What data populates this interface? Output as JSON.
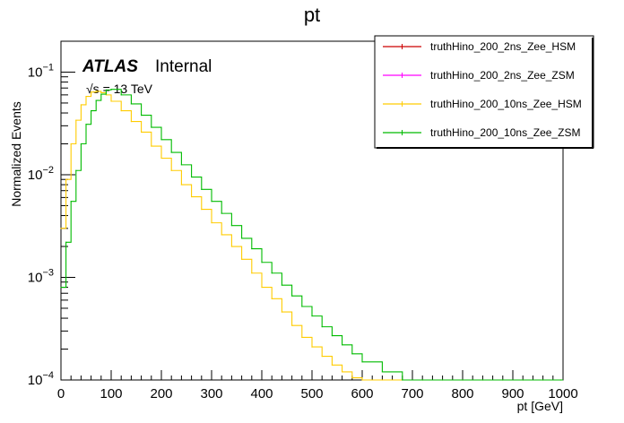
{
  "chart_data": {
    "type": "line",
    "title": "pt",
    "xlabel": "pt [GeV]",
    "ylabel": "Normalized Events",
    "xlim": [
      0,
      1000
    ],
    "ylim": [
      0.0001,
      0.2
    ],
    "yscale": "log",
    "bin_width": 5,
    "x_ticks": [
      0,
      100,
      200,
      300,
      400,
      500,
      600,
      700,
      800,
      900,
      1000
    ],
    "x_tick_labels": [
      "0",
      "100",
      "200",
      "300",
      "400",
      "500",
      "600",
      "700",
      "800",
      "900",
      "1000"
    ],
    "y_tick_labels": [
      {
        "value": 0.1,
        "base": "10",
        "exp": "−1"
      },
      {
        "value": 0.01,
        "base": "10",
        "exp": "−2"
      },
      {
        "value": 0.001,
        "base": "10",
        "exp": "−3"
      },
      {
        "value": 0.0001,
        "base": "10",
        "exp": "−4"
      }
    ],
    "atlas_label": "ATLAS",
    "atlas_status": "Internal",
    "energy_label": "√s = 13 TeV",
    "legend_position": "top-right",
    "series": [
      {
        "name": "truthHino_200_2ns_Zee_HSM",
        "color": "#cc0000",
        "x": [],
        "values": []
      },
      {
        "name": "truthHino_200_2ns_Zee_ZSM",
        "color": "#ff00ff",
        "x": [],
        "values": []
      },
      {
        "name": "truthHino_200_10ns_Zee_HSM",
        "color": "#ffcc00",
        "x": [
          0,
          10,
          20,
          30,
          40,
          50,
          60,
          70,
          80,
          90,
          100,
          120,
          140,
          160,
          180,
          200,
          220,
          240,
          260,
          280,
          300,
          320,
          340,
          360,
          380,
          400,
          420,
          440,
          460,
          480,
          500,
          520,
          540,
          560,
          580,
          600,
          640,
          680,
          720,
          760,
          800,
          840,
          880,
          920,
          960,
          995
        ],
        "values": [
          0.003,
          0.009,
          0.02,
          0.034,
          0.048,
          0.058,
          0.064,
          0.065,
          0.063,
          0.06,
          0.052,
          0.042,
          0.033,
          0.026,
          0.019,
          0.0145,
          0.011,
          0.008,
          0.0061,
          0.0046,
          0.0034,
          0.0026,
          0.002,
          0.0015,
          0.0011,
          0.0008,
          0.00062,
          0.00046,
          0.00034,
          0.00026,
          0.00021,
          0.00017,
          0.00014,
          0.00012,
          0.000105,
          0.0001,
          9.5e-05,
          9e-05,
          9e-05,
          9e-05,
          9e-05,
          9e-05,
          9e-05,
          9e-05,
          9e-05,
          9e-05
        ]
      },
      {
        "name": "truthHino_200_10ns_Zee_ZSM",
        "color": "#00bb00",
        "x": [
          0,
          10,
          20,
          30,
          40,
          50,
          60,
          70,
          80,
          90,
          100,
          120,
          140,
          160,
          180,
          200,
          220,
          240,
          260,
          280,
          300,
          320,
          340,
          360,
          380,
          400,
          420,
          440,
          460,
          480,
          500,
          520,
          540,
          560,
          580,
          600,
          640,
          680,
          720,
          760,
          800,
          840,
          880,
          920,
          960,
          995
        ],
        "values": [
          0.0008,
          0.0022,
          0.0055,
          0.011,
          0.02,
          0.031,
          0.042,
          0.053,
          0.061,
          0.067,
          0.068,
          0.06,
          0.049,
          0.038,
          0.029,
          0.022,
          0.0165,
          0.0125,
          0.0095,
          0.0072,
          0.0055,
          0.0042,
          0.0032,
          0.0024,
          0.0019,
          0.0014,
          0.0011,
          0.00084,
          0.00066,
          0.00052,
          0.00042,
          0.00033,
          0.00027,
          0.00022,
          0.00018,
          0.00015,
          0.00012,
          0.0001,
          9e-05,
          9e-05,
          9e-05,
          9e-05,
          9e-05,
          9e-05,
          9e-05,
          9e-05
        ]
      }
    ]
  }
}
